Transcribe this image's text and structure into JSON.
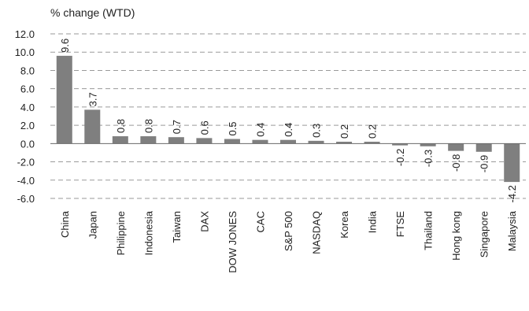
{
  "chart_data": {
    "type": "bar",
    "ylabel": "% change (WTD)",
    "ylim": [
      -6.0,
      12.0
    ],
    "yticks": [
      "12.0",
      "10.0",
      "8.0",
      "6.0",
      "4.0",
      "2.0",
      "0.0",
      "-2.0",
      "-4.0",
      "-6.0"
    ],
    "ytick_values": [
      12,
      10,
      8,
      6,
      4,
      2,
      0,
      -2,
      -4,
      -6
    ],
    "grid": true,
    "bar_color": "#7f7f7f",
    "categories": [
      "China",
      "Japan",
      "Philippine",
      "Indonesia",
      "Taiwan",
      "DAX",
      "DOW JONES",
      "CAC",
      "S&P 500",
      "NASDAQ",
      "Korea",
      "India",
      "FTSE",
      "Thailand",
      "Hong kong",
      "Singapore",
      "Malaysia"
    ],
    "values": [
      9.6,
      3.7,
      0.8,
      0.8,
      0.7,
      0.6,
      0.5,
      0.4,
      0.4,
      0.3,
      0.2,
      0.2,
      -0.2,
      -0.3,
      -0.8,
      -0.9,
      -4.2
    ],
    "value_labels": [
      "9.6",
      "3.7",
      "0.8",
      "0.8",
      "0.7",
      "0.6",
      "0.5",
      "0.4",
      "0.4",
      "0.3",
      "0.2",
      "0.2",
      "-0.2",
      "-0.3",
      "-0.8",
      "-0.9",
      "-4.2"
    ]
  }
}
